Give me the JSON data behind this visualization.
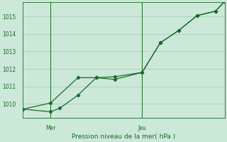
{
  "xlabel": "Pression niveau de la mer( hPa )",
  "background_color": "#cce8d8",
  "line_color": "#1a6b2a",
  "grid_color": "#aacfba",
  "ylim": [
    1009.2,
    1015.8
  ],
  "xlim": [
    0,
    11
  ],
  "yticks": [
    1010,
    1011,
    1012,
    1013,
    1014,
    1015
  ],
  "x_ticks": [
    1.5,
    6.5
  ],
  "x_tick_labels": [
    "Mer",
    "Jeu"
  ],
  "vline_x": [
    1.5,
    6.5
  ],
  "line1_x": [
    0,
    1.5,
    3,
    4,
    5,
    6.5,
    7.5,
    8.5,
    9.5,
    10.5,
    11
  ],
  "line1_y": [
    1009.7,
    1010.05,
    1011.5,
    1011.5,
    1011.55,
    1011.8,
    1013.5,
    1014.2,
    1015.05,
    1015.3,
    1015.85
  ],
  "line2_x": [
    0,
    1.5,
    2.0,
    3.0,
    4.0,
    5.0,
    6.5,
    7.5,
    8.5,
    9.5,
    10.5,
    11
  ],
  "line2_y": [
    1009.7,
    1009.55,
    1009.75,
    1010.5,
    1011.5,
    1011.4,
    1011.8,
    1013.5,
    1014.2,
    1015.05,
    1015.3,
    1015.85
  ]
}
